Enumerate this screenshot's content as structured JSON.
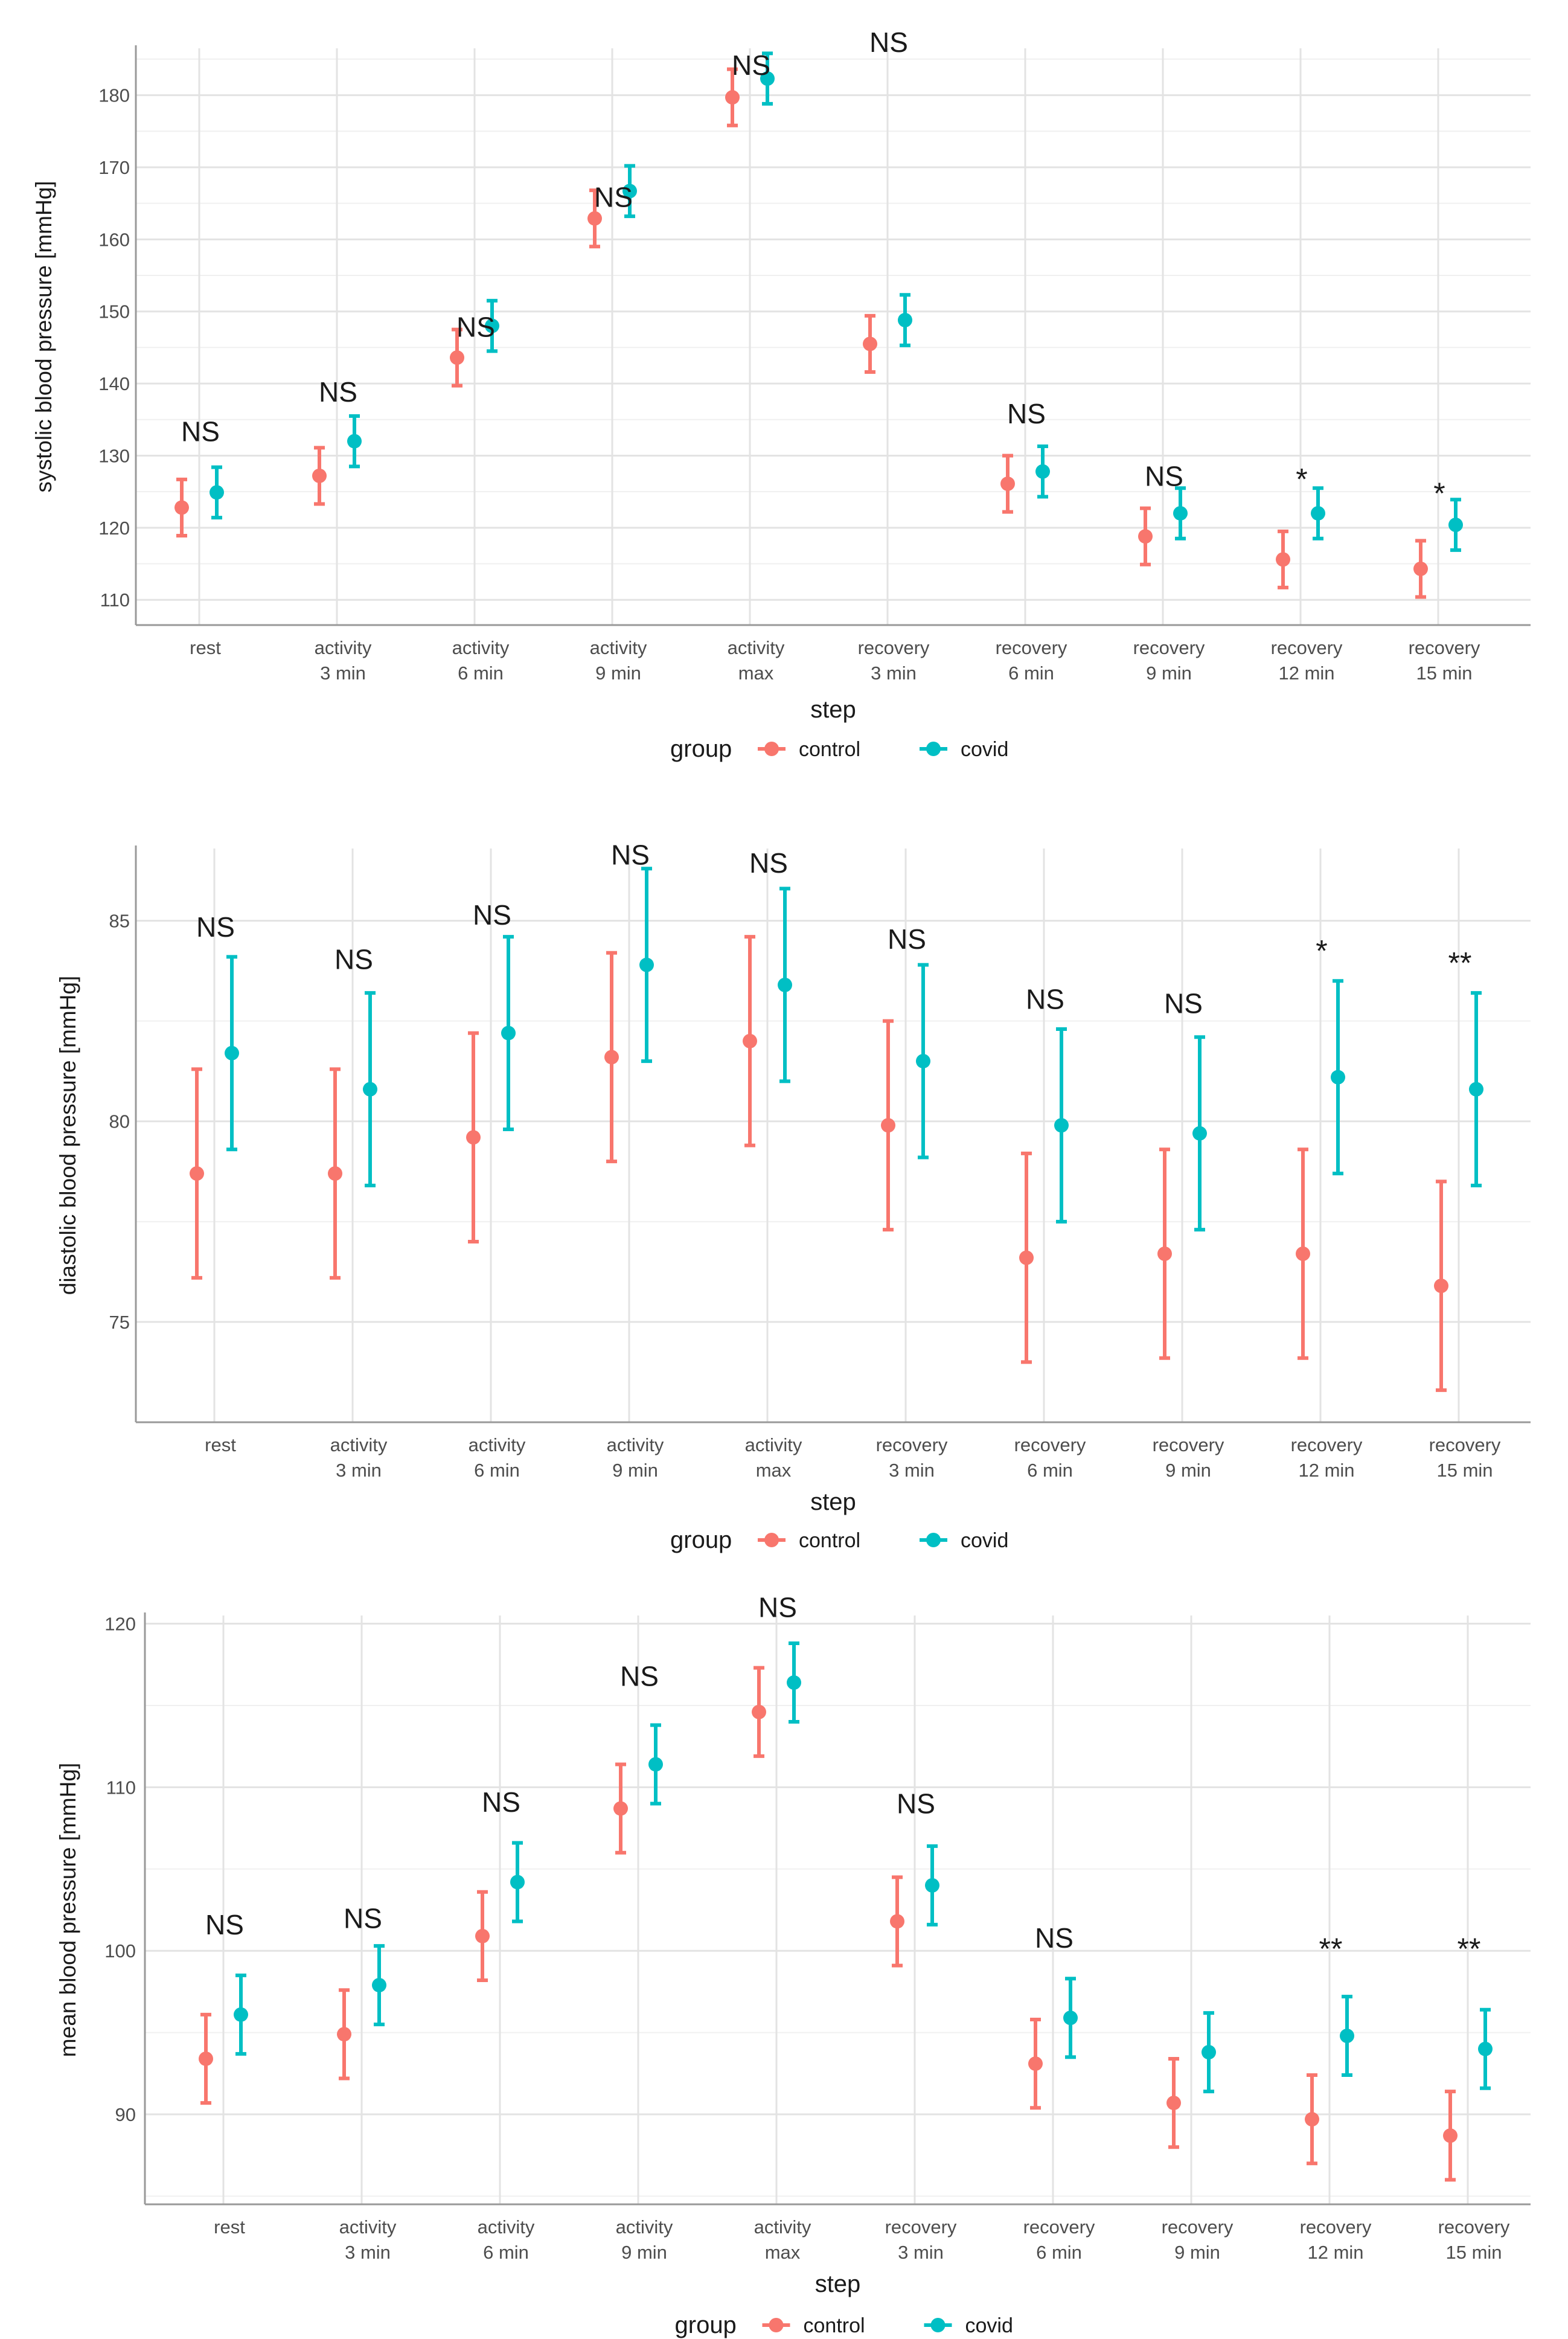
{
  "groups": [
    {
      "name": "control",
      "color": "#F8766D"
    },
    {
      "name": "covid",
      "color": "#00BFC4"
    }
  ],
  "legend_title": "group",
  "chart_data": [
    {
      "type": "scatter",
      "title": "",
      "xlabel": "step",
      "ylabel": "systolic blood pressure [mmHg]",
      "ylim": [
        106.5,
        186.5
      ],
      "yticks": [
        110,
        120,
        130,
        140,
        150,
        160,
        170,
        180
      ],
      "categories": [
        [
          "rest"
        ],
        [
          "activity",
          "3 min"
        ],
        [
          "activity",
          "6 min"
        ],
        [
          "activity",
          "9 min"
        ],
        [
          "activity",
          "max"
        ],
        [
          "recovery",
          "3 min"
        ],
        [
          "recovery",
          "6 min"
        ],
        [
          "recovery",
          "9 min"
        ],
        [
          "recovery",
          "12 min"
        ],
        [
          "recovery",
          "15 min"
        ]
      ],
      "series": [
        {
          "name": "control",
          "mean": [
            122.8,
            127.2,
            143.6,
            162.9,
            179.7,
            145.5,
            126.1,
            118.8,
            115.6,
            114.3
          ],
          "lower": [
            118.9,
            123.3,
            139.7,
            159.0,
            175.8,
            141.6,
            122.2,
            114.9,
            111.7,
            110.4
          ],
          "upper": [
            126.7,
            131.1,
            147.5,
            166.8,
            183.6,
            149.4,
            130.0,
            122.7,
            119.5,
            118.2
          ]
        },
        {
          "name": "covid",
          "mean": [
            124.9,
            132.0,
            148.0,
            166.7,
            182.3,
            148.8,
            127.8,
            122.0,
            122.0,
            120.4
          ],
          "lower": [
            121.4,
            128.5,
            144.5,
            163.2,
            178.8,
            145.3,
            124.3,
            118.5,
            118.5,
            116.9
          ],
          "upper": [
            128.4,
            135.5,
            151.5,
            170.2,
            185.8,
            152.3,
            131.3,
            125.5,
            125.5,
            123.9
          ]
        }
      ],
      "annotations": [
        "NS",
        "NS",
        "NS",
        "NS",
        "NS",
        "NS",
        "NS",
        "NS",
        "*",
        "*"
      ],
      "annotation_values": [
        132.0,
        137.5,
        146.5,
        164.5,
        182.8,
        186.0,
        134.5,
        125.8,
        126.5,
        124.5
      ]
    },
    {
      "type": "scatter",
      "title": "",
      "xlabel": "step",
      "ylabel": "diastolic blood pressure [mmHg]",
      "ylim": [
        72.5,
        86.8
      ],
      "yticks": [
        75,
        80,
        85
      ],
      "categories": [
        [
          "rest"
        ],
        [
          "activity",
          "3 min"
        ],
        [
          "activity",
          "6 min"
        ],
        [
          "activity",
          "9 min"
        ],
        [
          "activity",
          "max"
        ],
        [
          "recovery",
          "3 min"
        ],
        [
          "recovery",
          "6 min"
        ],
        [
          "recovery",
          "9 min"
        ],
        [
          "recovery",
          "12 min"
        ],
        [
          "recovery",
          "15 min"
        ]
      ],
      "series": [
        {
          "name": "control",
          "mean": [
            78.7,
            78.7,
            79.6,
            81.6,
            82.0,
            79.9,
            76.6,
            76.7,
            76.7,
            75.9
          ],
          "lower": [
            76.1,
            76.1,
            77.0,
            79.0,
            79.4,
            77.3,
            74.0,
            74.1,
            74.1,
            73.3
          ],
          "upper": [
            81.3,
            81.3,
            82.2,
            84.2,
            84.6,
            82.5,
            79.2,
            79.3,
            79.3,
            78.5
          ]
        },
        {
          "name": "covid",
          "mean": [
            81.7,
            80.8,
            82.2,
            83.9,
            83.4,
            81.5,
            79.9,
            79.7,
            81.1,
            80.8
          ],
          "lower": [
            79.3,
            78.4,
            79.8,
            81.5,
            81.0,
            79.1,
            77.5,
            77.3,
            78.7,
            78.4
          ],
          "upper": [
            84.1,
            83.2,
            84.6,
            86.3,
            85.8,
            83.9,
            82.3,
            82.1,
            83.5,
            83.2
          ]
        }
      ],
      "annotations": [
        "NS",
        "NS",
        "NS",
        "NS",
        "NS",
        "NS",
        "NS",
        "NS",
        "*",
        "**"
      ],
      "annotation_values": [
        84.6,
        83.8,
        84.9,
        86.4,
        86.2,
        84.3,
        82.8,
        82.7,
        84.2,
        83.9
      ]
    },
    {
      "type": "scatter",
      "title": "",
      "xlabel": "step",
      "ylabel": "mean blood pressure [mmHg]",
      "ylim": [
        84.5,
        120.5
      ],
      "yticks": [
        90,
        100,
        110,
        120
      ],
      "categories": [
        [
          "rest"
        ],
        [
          "activity",
          "3 min"
        ],
        [
          "activity",
          "6 min"
        ],
        [
          "activity",
          "9 min"
        ],
        [
          "activity",
          "max"
        ],
        [
          "recovery",
          "3 min"
        ],
        [
          "recovery",
          "6 min"
        ],
        [
          "recovery",
          "9 min"
        ],
        [
          "recovery",
          "12 min"
        ],
        [
          "recovery",
          "15 min"
        ]
      ],
      "series": [
        {
          "name": "control",
          "mean": [
            93.4,
            94.9,
            100.9,
            108.7,
            114.6,
            101.8,
            93.1,
            90.7,
            89.7,
            88.7
          ],
          "lower": [
            90.7,
            92.2,
            98.2,
            106.0,
            111.9,
            99.1,
            90.4,
            88.0,
            87.0,
            86.0
          ],
          "upper": [
            96.1,
            97.6,
            103.6,
            111.4,
            117.3,
            104.5,
            95.8,
            93.4,
            92.4,
            91.4
          ]
        },
        {
          "name": "covid",
          "mean": [
            96.1,
            97.9,
            104.2,
            111.4,
            116.4,
            104.0,
            95.9,
            93.8,
            94.8,
            94.0
          ],
          "lower": [
            93.7,
            95.5,
            101.8,
            109.0,
            114.0,
            101.6,
            93.5,
            91.4,
            92.4,
            91.6
          ],
          "upper": [
            98.5,
            100.3,
            106.6,
            113.8,
            118.8,
            106.4,
            98.3,
            96.2,
            97.2,
            96.4
          ]
        }
      ],
      "annotations": [
        "NS",
        "NS",
        "NS",
        "NS",
        "NS",
        "NS",
        "NS",
        "",
        "**",
        "**"
      ],
      "annotation_values": [
        101.0,
        101.4,
        108.5,
        116.2,
        120.4,
        108.4,
        100.2,
        0,
        100.0,
        100.0
      ]
    }
  ]
}
